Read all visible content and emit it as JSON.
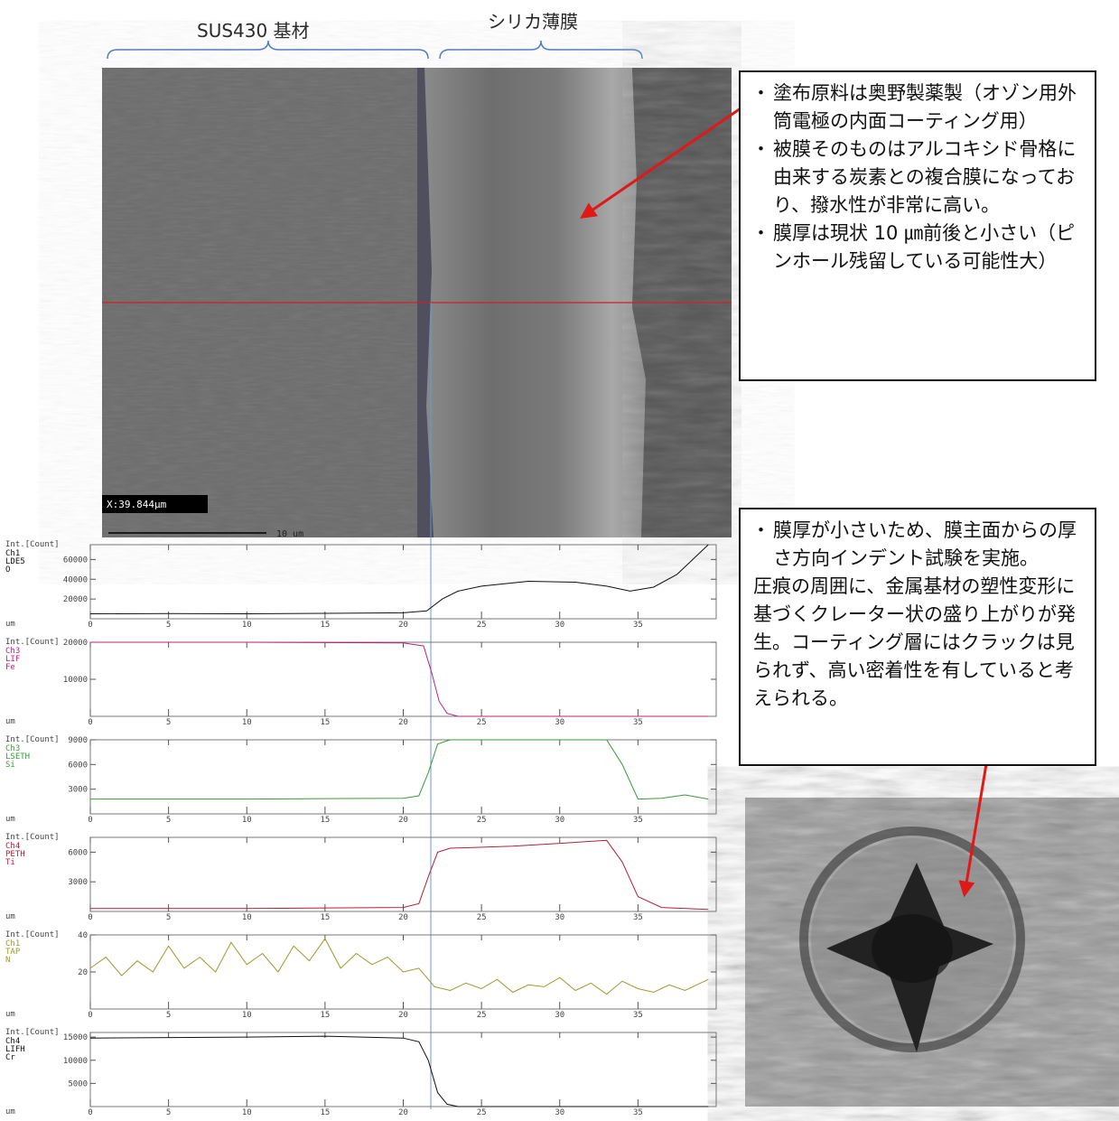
{
  "labels": {
    "substrate": "SUS430 基材",
    "film": "シリカ薄膜"
  },
  "sem": {
    "measure": "X:39.844μm",
    "scale": "10 um"
  },
  "note1": {
    "bullets": [
      "塗布原料は奥野製薬製（オゾン用外筒電極の内面コーティング用）",
      "被膜そのものはアルコキシド骨格に由来する炭素との複合膜になっており、撥水性が非常に高い。",
      "膜厚は現状 10 ㎛前後と小さい（ピンホール残留している可能性大）"
    ]
  },
  "note2": {
    "bullets": [
      "膜厚が小さいため、膜主面からの厚さ方向インデント試験を実施。"
    ],
    "paragraph": "圧痕の周囲に、金属基材の塑性変形に基づくクレーター状の盛り上がりが発生。コーティング層にはクラックは見られず、高い密着性を有していると考えられる。"
  },
  "profiles": {
    "y_label": "Int.[Count]",
    "x_unit": "um",
    "xlim": [
      0,
      40
    ],
    "xticks": [
      0,
      5,
      10,
      15,
      20,
      25,
      30,
      35
    ],
    "panels": [
      {
        "channel": "Ch1 LDE5 O",
        "color": "#111111",
        "ylim": [
          0,
          75000
        ],
        "yticks": [
          20000,
          40000,
          60000
        ],
        "x": [
          0,
          5,
          10,
          15,
          20,
          21.5,
          22.5,
          23.5,
          25,
          28,
          31,
          33,
          34.5,
          36,
          37.5,
          38.5,
          39.5
        ],
        "values": [
          5000,
          5200,
          5000,
          5500,
          6000,
          8000,
          20000,
          28000,
          33000,
          38000,
          37000,
          33000,
          28000,
          32000,
          45000,
          60000,
          75000
        ]
      },
      {
        "channel": "Ch3 LIF Fe",
        "color": "#c0207a",
        "ylim": [
          0,
          20000
        ],
        "yticks": [
          10000,
          20000
        ],
        "x": [
          0,
          10,
          20,
          21.3,
          21.8,
          22.3,
          22.8,
          23.5,
          30,
          39.5
        ],
        "values": [
          20000,
          20000,
          19800,
          19000,
          12000,
          4000,
          800,
          0,
          0,
          0
        ]
      },
      {
        "channel": "Ch3 LSETH Si",
        "color": "#3a9a3a",
        "ylim": [
          0,
          9000
        ],
        "yticks": [
          3000,
          6000,
          9000
        ],
        "x": [
          0,
          10,
          20,
          21,
          21.6,
          22.2,
          23,
          28,
          33,
          34,
          35,
          36.5,
          38,
          39.5
        ],
        "values": [
          1800,
          1800,
          1900,
          2200,
          5000,
          8500,
          9000,
          9000,
          9000,
          6000,
          1800,
          1900,
          2300,
          1800
        ]
      },
      {
        "channel": "Ch4 PETH Ti",
        "color": "#b0203a",
        "ylim": [
          0,
          7500
        ],
        "yticks": [
          3000,
          6000
        ],
        "x": [
          0,
          10,
          20,
          21,
          21.6,
          22.2,
          23,
          27,
          30,
          33,
          34,
          35,
          36.5,
          39.5
        ],
        "values": [
          300,
          300,
          400,
          800,
          3500,
          6000,
          6400,
          6600,
          6900,
          7200,
          5000,
          1500,
          400,
          200
        ]
      },
      {
        "channel": "Ch1 TAP N",
        "color": "#9a9a30",
        "ylim": [
          0,
          40
        ],
        "yticks": [
          20,
          40
        ],
        "x": [
          0,
          1,
          2,
          3,
          4,
          5,
          6,
          7,
          8,
          9,
          10,
          11,
          12,
          13,
          14,
          15,
          16,
          17,
          18,
          19,
          20,
          21,
          22,
          23,
          24,
          25,
          26,
          27,
          28,
          29,
          30,
          31,
          32,
          33,
          34,
          35,
          36,
          37,
          38,
          39.5
        ],
        "values": [
          22,
          28,
          18,
          26,
          20,
          34,
          22,
          28,
          20,
          36,
          24,
          30,
          20,
          34,
          26,
          38,
          22,
          30,
          24,
          28,
          20,
          22,
          12,
          10,
          14,
          11,
          16,
          9,
          13,
          12,
          17,
          10,
          14,
          8,
          15,
          11,
          9,
          13,
          10,
          16
        ]
      },
      {
        "channel": "Ch4 LIFH Cr",
        "color": "#111111",
        "ylim": [
          0,
          16000
        ],
        "yticks": [
          5000,
          10000,
          15000
        ],
        "x": [
          0,
          10,
          15,
          20,
          21,
          21.6,
          22.2,
          22.8,
          23.5,
          39.5
        ],
        "values": [
          14800,
          15000,
          15200,
          14800,
          14000,
          10000,
          3000,
          500,
          0,
          0
        ]
      }
    ]
  }
}
